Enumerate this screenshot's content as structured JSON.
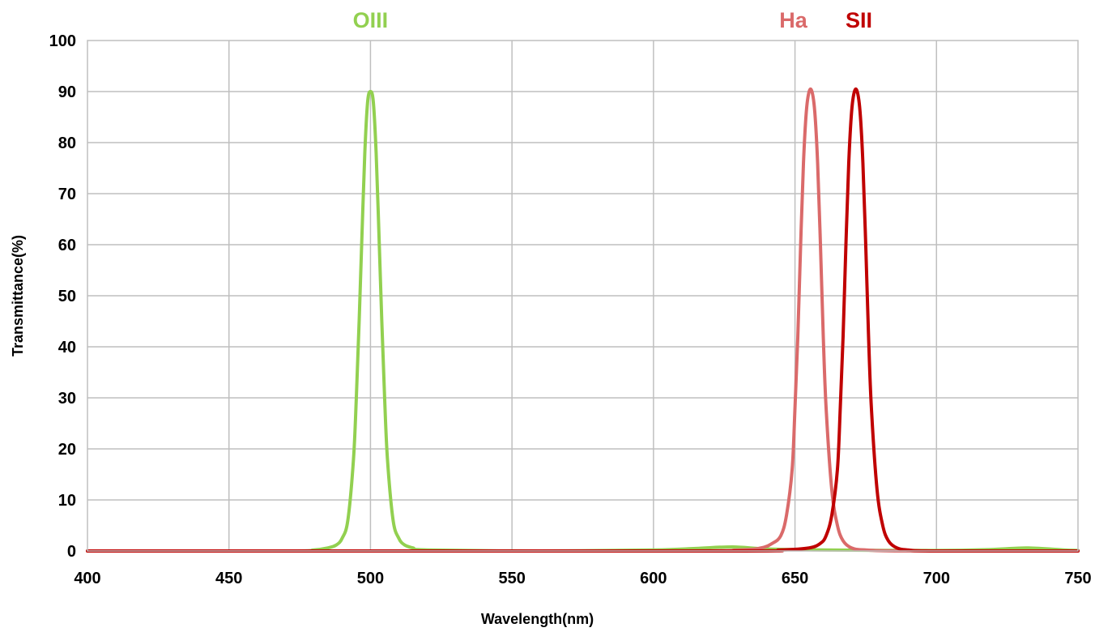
{
  "chart_data": {
    "type": "line",
    "title": "",
    "xlabel": "Wavelength(nm)",
    "ylabel": "Transmittance(%)",
    "xlim": [
      400,
      750
    ],
    "ylim": [
      0,
      100
    ],
    "x_ticks": [
      400,
      450,
      500,
      550,
      600,
      650,
      700,
      750
    ],
    "y_ticks": [
      0,
      10,
      20,
      30,
      40,
      50,
      60,
      70,
      80,
      90,
      100
    ],
    "grid": true,
    "legend": "none",
    "series": [
      {
        "name": "OIII",
        "color": "#92d050",
        "x": [
          400,
          470,
          480,
          485,
          488,
          490,
          492,
          494,
          495,
          496,
          497,
          498,
          499,
          500,
          501,
          502,
          503,
          504,
          505,
          506,
          508,
          510,
          512,
          515,
          520,
          560,
          600,
          615,
          628,
          640,
          660,
          700,
          720,
          732,
          745,
          750
        ],
        "y": [
          0,
          0,
          0.2,
          0.6,
          1.2,
          2.5,
          6,
          18,
          30,
          45,
          62,
          78,
          88,
          90,
          88,
          78,
          62,
          45,
          30,
          18,
          6,
          2.5,
          1.2,
          0.6,
          0.2,
          0,
          0.2,
          0.5,
          0.8,
          0.4,
          0.2,
          0.1,
          0.3,
          0.6,
          0.2,
          0.1
        ]
      },
      {
        "name": "Ha",
        "color": "#da6a6a",
        "x": [
          400,
          600,
          630,
          638,
          642,
          645,
          647,
          649,
          650,
          651,
          652,
          653,
          654,
          655,
          656,
          657,
          658,
          659,
          660,
          661,
          663,
          665,
          667,
          670,
          675,
          690,
          750
        ],
        "y": [
          0,
          0,
          0.2,
          0.6,
          1.5,
          3,
          7,
          16,
          28,
          42,
          60,
          76,
          86,
          90,
          90,
          86,
          76,
          60,
          42,
          28,
          12,
          5,
          2,
          0.6,
          0.2,
          0,
          0
        ]
      },
      {
        "name": "SII",
        "color": "#c00000",
        "x": [
          400,
          620,
          645,
          655,
          659,
          661,
          663,
          665,
          666,
          667,
          668,
          669,
          670,
          671,
          672,
          673,
          674,
          675,
          676,
          677,
          679,
          681,
          683,
          686,
          690,
          700,
          750
        ],
        "y": [
          0,
          0,
          0.2,
          0.6,
          1.5,
          3,
          7,
          16,
          28,
          42,
          60,
          76,
          86,
          90,
          90,
          86,
          76,
          60,
          42,
          28,
          12,
          5,
          2,
          0.6,
          0.2,
          0,
          0
        ]
      }
    ],
    "annotations": [
      {
        "text": "OIII",
        "x": 500,
        "color": "#92d050"
      },
      {
        "text": "Ha",
        "x": 656,
        "color": "#da6a6a"
      },
      {
        "text": "SII",
        "x": 672,
        "color": "#c00000"
      }
    ]
  }
}
